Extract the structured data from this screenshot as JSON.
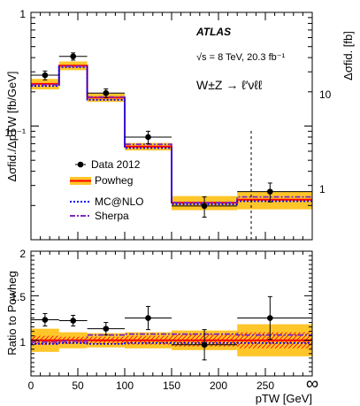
{
  "chart_data": [
    {
      "type": "histogram",
      "panel": "main",
      "experiment": "ATLAS",
      "energy_label": "√s = 8 TeV, 20.3 fb⁻¹",
      "process_label": "W±Z → ℓ′νℓℓ",
      "ylabel": "Δσfid./ΔpTW [fb/GeV]",
      "ylabel_right": "Δσfid. [fb]",
      "yscale": "log",
      "ylim": [
        0.01,
        1
      ],
      "ytick_labels": [
        "1",
        "10⁻¹"
      ],
      "ytick_labels_right": [
        "10",
        "1"
      ],
      "bin_edges": [
        0,
        30,
        60,
        100,
        150,
        220,
        300
      ],
      "last_bin_is_overflow": true,
      "data": {
        "name": "Data 2012",
        "x": [
          15,
          45,
          80,
          125,
          185,
          255
        ],
        "y": [
          0.28,
          0.41,
          0.195,
          0.08,
          0.0198,
          0.0265
        ],
        "yerr": [
          0.025,
          0.03,
          0.017,
          0.01,
          0.004,
          0.005
        ]
      },
      "series": [
        {
          "name": "Powheg",
          "values": [
            0.235,
            0.34,
            0.178,
            0.066,
            0.0212,
            0.0225
          ],
          "band": [
            0.025,
            0.03,
            0.015,
            0.005,
            0.003,
            0.004
          ],
          "color": "#ff0000",
          "band_color": "#ffc629"
        },
        {
          "name": "MC@NLO",
          "values": [
            0.225,
            0.33,
            0.17,
            0.064,
            0.0205,
            0.0218
          ],
          "color": "#0000ff"
        },
        {
          "name": "Sherpa",
          "values": [
            0.23,
            0.335,
            0.18,
            0.069,
            0.0212,
            0.0238
          ],
          "color": "#7b2cbf"
        }
      ]
    },
    {
      "type": "histogram",
      "panel": "ratio",
      "ylabel": "Ratio to Powheg",
      "xlabel": "pTW [GeV]",
      "ylim": [
        0.6,
        2.0
      ],
      "ytick_labels": [
        "1",
        "1.5",
        "2"
      ],
      "xtick_labels": [
        "0",
        "50",
        "100",
        "150",
        "200",
        "250",
        "∞"
      ],
      "bin_edges": [
        0,
        30,
        60,
        100,
        150,
        220,
        300
      ],
      "data": {
        "x": [
          15,
          45,
          80,
          125,
          185,
          255
        ],
        "y": [
          1.23,
          1.22,
          1.13,
          1.25,
          0.95,
          1.25
        ],
        "yerr": [
          0.07,
          0.06,
          0.07,
          0.13,
          0.17,
          0.24
        ]
      },
      "powheg_band": [
        0.13,
        0.09,
        0.08,
        0.09,
        0.11,
        0.18
      ],
      "stat_band": [
        0.05,
        0.04,
        0.04,
        0.05,
        0.07,
        0.09
      ],
      "mcnlo": [
        0.96,
        0.97,
        0.96,
        0.97,
        0.97,
        0.97
      ],
      "sherpa": [
        0.98,
        0.99,
        1.06,
        1.07,
        1.07,
        1.06
      ]
    }
  ],
  "colors": {
    "data": "#000000",
    "band": "#ffc629",
    "powheg": "#ff0000",
    "mcnlo": "#0000ff",
    "sherpa": "#7b2cbf"
  }
}
